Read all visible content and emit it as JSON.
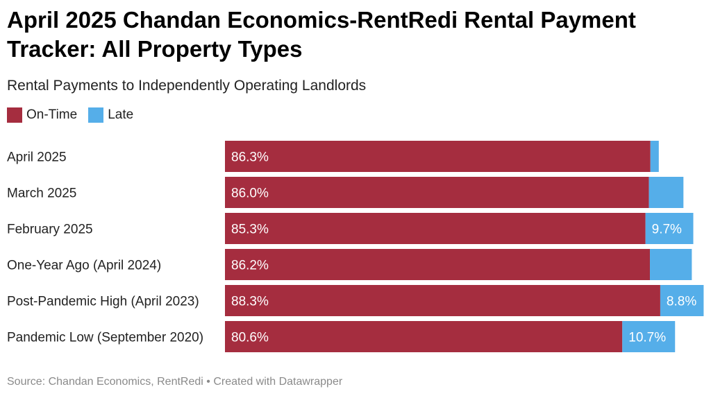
{
  "title": "April 2025 Chandan Economics-RentRedi Rental Payment Tracker: All Property Types",
  "subtitle": "Rental Payments to Independently Operating Landlords",
  "colors": {
    "on_time": "#a52d3f",
    "late": "#55aee9"
  },
  "legend": [
    {
      "label": "On-Time",
      "color": "#a52d3f"
    },
    {
      "label": "Late",
      "color": "#55aee9"
    }
  ],
  "source": "Source: Chandan Economics, RentRedi • Created with Datawrapper",
  "chart_data": {
    "type": "bar",
    "orientation": "horizontal",
    "stacked": true,
    "xlim": [
      0,
      100
    ],
    "categories": [
      "April 2025",
      "March 2025",
      "February 2025",
      "One-Year Ago (April 2024)",
      "Post-Pandemic High (April 2023)",
      "Pandemic Low (September 2020)"
    ],
    "series": [
      {
        "name": "On-Time",
        "values": [
          86.3,
          86.0,
          85.3,
          86.2,
          88.3,
          80.6
        ],
        "labels": [
          "86.3%",
          "86.0%",
          "85.3%",
          "86.2%",
          "88.3%",
          "80.6%"
        ]
      },
      {
        "name": "Late",
        "values": [
          1.7,
          7.0,
          9.7,
          8.5,
          8.8,
          10.7
        ],
        "labels": [
          "",
          "",
          "9.7%",
          "",
          "8.8%",
          "10.7%"
        ]
      }
    ]
  }
}
